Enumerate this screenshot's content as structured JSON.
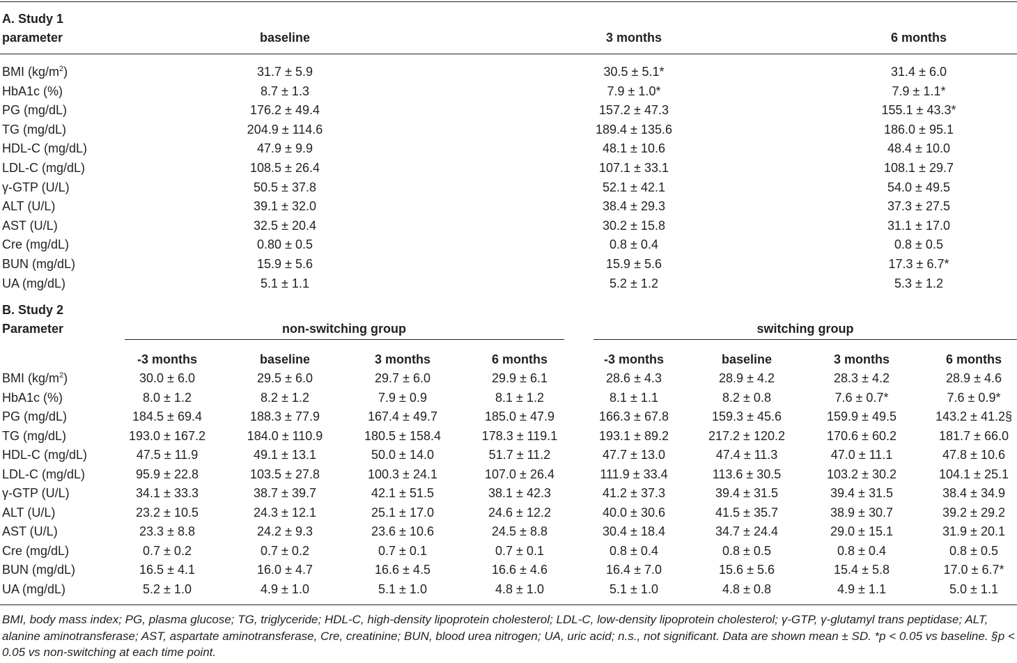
{
  "study1": {
    "title": "A. Study 1",
    "param_header": "parameter",
    "columns": [
      "baseline",
      "3 months",
      "6 months"
    ],
    "rows": [
      {
        "param": "BMI (kg/m",
        "param_sup": "2",
        "param_after": ")",
        "values": [
          "31.7 ± 5.9",
          "30.5 ± 5.1*",
          "31.4 ± 6.0"
        ]
      },
      {
        "param": "HbA1c (%)",
        "values": [
          "8.7 ± 1.3",
          "7.9 ± 1.0*",
          "7.9 ± 1.1*"
        ]
      },
      {
        "param": "PG (mg/dL)",
        "values": [
          "176.2 ± 49.4",
          "157.2 ± 47.3",
          "155.1 ± 43.3*"
        ]
      },
      {
        "param": "TG (mg/dL)",
        "values": [
          "204.9 ± 114.6",
          "189.4 ± 135.6",
          "186.0 ± 95.1"
        ]
      },
      {
        "param": "HDL-C (mg/dL)",
        "values": [
          "47.9 ± 9.9",
          "48.1 ± 10.6",
          "48.4 ± 10.0"
        ]
      },
      {
        "param": "LDL-C (mg/dL)",
        "values": [
          "108.5 ± 26.4",
          "107.1 ± 33.1",
          "108.1 ± 29.7"
        ]
      },
      {
        "param": "γ-GTP (U/L)",
        "values": [
          "50.5 ± 37.8",
          "52.1 ± 42.1",
          "54.0 ± 49.5"
        ]
      },
      {
        "param": "ALT (U/L)",
        "values": [
          "39.1 ± 32.0",
          "38.4 ± 29.3",
          "37.3 ± 27.5"
        ]
      },
      {
        "param": "AST (U/L)",
        "values": [
          "32.5 ± 20.4",
          "30.2 ± 15.8",
          "31.1 ± 17.0"
        ]
      },
      {
        "param": "Cre (mg/dL)",
        "values": [
          "0.80 ± 0.5",
          "0.8 ± 0.4",
          "0.8 ± 0.5"
        ]
      },
      {
        "param": "BUN (mg/dL)",
        "values": [
          "15.9 ± 5.6",
          "15.9 ± 5.6",
          "17.3 ± 6.7*"
        ]
      },
      {
        "param": "UA (mg/dL)",
        "values": [
          "5.1 ± 1.1",
          "5.2 ± 1.2",
          "5.3 ± 1.2"
        ]
      }
    ]
  },
  "study2": {
    "title": "B. Study 2",
    "param_header": "Parameter",
    "groups": [
      "non-switching group",
      "switching group"
    ],
    "columns": [
      "-3 months",
      "baseline",
      "3 months",
      "6 months",
      "-3 months",
      "baseline",
      "3 months",
      "6 months"
    ],
    "rows": [
      {
        "param": "BMI (kg/m",
        "param_sup": "2",
        "param_after": ")",
        "values": [
          "30.0 ± 6.0",
          "29.5 ± 6.0",
          "29.7 ± 6.0",
          "29.9 ± 6.1",
          "28.6 ± 4.3",
          "28.9 ± 4.2",
          "28.3 ± 4.2",
          "28.9 ± 4.6"
        ]
      },
      {
        "param": "HbA1c (%)",
        "values": [
          "8.0 ± 1.2",
          "8.2 ± 1.2",
          "7.9 ± 0.9",
          "8.1 ± 1.2",
          "8.1 ± 1.1",
          "8.2 ± 0.8",
          "7.6 ± 0.7*",
          "7.6 ± 0.9*"
        ]
      },
      {
        "param": "PG (mg/dL)",
        "values": [
          "184.5 ± 69.4",
          "188.3 ± 77.9",
          "167.4 ± 49.7",
          "185.0 ± 47.9",
          "166.3 ± 67.8",
          "159.3 ± 45.6",
          "159.9 ± 49.5",
          "143.2 ± 41.2§"
        ]
      },
      {
        "param": "TG (mg/dL)",
        "values": [
          "193.0 ± 167.2",
          "184.0 ± 110.9",
          "180.5 ± 158.4",
          "178.3 ± 119.1",
          "193.1 ± 89.2",
          "217.2 ± 120.2",
          "170.6 ± 60.2",
          "181.7 ± 66.0"
        ]
      },
      {
        "param": "HDL-C (mg/dL)",
        "values": [
          "47.5 ± 11.9",
          "49.1 ± 13.1",
          "50.0 ± 14.0",
          "51.7 ± 11.2",
          "47.7 ± 13.0",
          "47.4 ± 11.3",
          "47.0 ± 11.1",
          "47.8 ± 10.6"
        ]
      },
      {
        "param": "LDL-C (mg/dL)",
        "values": [
          "95.9 ± 22.8",
          "103.5 ± 27.8",
          "100.3 ± 24.1",
          "107.0 ± 26.4",
          "111.9 ± 33.4",
          "113.6 ± 30.5",
          "103.2 ± 30.2",
          "104.1 ± 25.1"
        ]
      },
      {
        "param": "γ-GTP (U/L)",
        "values": [
          "34.1 ± 33.3",
          "38.7 ± 39.7",
          "42.1 ± 51.5",
          "38.1 ± 42.3",
          "41.2 ± 37.3",
          "39.4 ± 31.5",
          "39.4 ± 31.5",
          "38.4 ± 34.9"
        ]
      },
      {
        "param": "ALT (U/L)",
        "values": [
          "23.2 ± 10.5",
          "24.3 ± 12.1",
          "25.1 ± 17.0",
          "24.6 ± 12.2",
          "40.0 ± 30.6",
          "41.5 ± 35.7",
          "38.9 ± 30.7",
          "39.2 ± 29.2"
        ]
      },
      {
        "param": "AST (U/L)",
        "values": [
          "23.3 ± 8.8",
          "24.2 ± 9.3",
          "23.6 ± 10.6",
          "24.5 ± 8.8",
          "30.4 ± 18.4",
          "34.7 ± 24.4",
          "29.0 ± 15.1",
          "31.9 ± 20.1"
        ]
      },
      {
        "param": "Cre (mg/dL)",
        "values": [
          "0.7 ± 0.2",
          "0.7 ± 0.2",
          "0.7 ± 0.1",
          "0.7 ± 0.1",
          "0.8 ± 0.4",
          "0.8 ± 0.5",
          "0.8 ± 0.4",
          "0.8 ± 0.5"
        ]
      },
      {
        "param": "BUN (mg/dL)",
        "values": [
          "16.5 ± 4.1",
          "16.0 ± 4.7",
          "16.6 ± 4.5",
          "16.6 ± 4.6",
          "16.4 ± 7.0",
          "15.6 ± 5.6",
          "15.4 ± 5.8",
          "17.0 ± 6.7*"
        ]
      },
      {
        "param": "UA (mg/dL)",
        "values": [
          "5.2 ± 1.0",
          "4.9 ± 1.0",
          "5.1 ± 1.0",
          "4.8 ± 1.0",
          "5.1 ± 1.0",
          "4.8 ± 0.8",
          "4.9 ± 1.1",
          "5.0 ± 1.1"
        ]
      }
    ]
  },
  "footnote": "BMI, body mass index; PG, plasma glucose; TG, triglyceride; HDL-C, high-density lipoprotein cholesterol; LDL-C, low-density lipoprotein cholesterol; γ-GTP, γ-glutamyl trans peptidase; ALT, alanine aminotransferase; AST, aspartate aminotransferase, Cre, creatinine; BUN, blood urea nitrogen; UA, uric acid; n.s., not significant. Data are shown mean ± SD. *p < 0.05 vs baseline. §p < 0.05 vs non-switching at each time point."
}
